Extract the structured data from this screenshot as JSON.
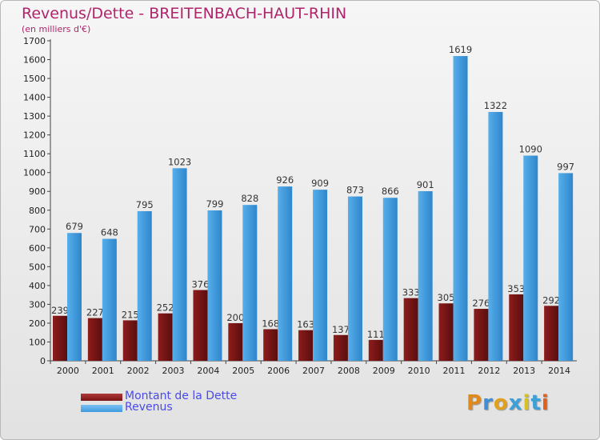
{
  "title": "Revenus/Dette - BREITENBACH-HAUT-RHIN",
  "subtitle": "(en milliers d'€)",
  "legend": {
    "debt": "Montant de la Dette",
    "revenue": "Revenus"
  },
  "colors": {
    "debt": "#7a1414",
    "revenue": "#3e9ae0"
  },
  "logo": "Proxiti",
  "chart_data": {
    "type": "bar",
    "title": "Revenus/Dette - BREITENBACH-HAUT-RHIN",
    "xlabel": "",
    "ylabel": "",
    "ylim": [
      0,
      1700
    ],
    "yticks": [
      0,
      100,
      200,
      300,
      400,
      500,
      600,
      700,
      800,
      900,
      1000,
      1100,
      1200,
      1300,
      1400,
      1500,
      1600,
      1700
    ],
    "grid": false,
    "legend_position": "bottom-left",
    "categories": [
      "2000",
      "2001",
      "2002",
      "2003",
      "2004",
      "2005",
      "2006",
      "2007",
      "2008",
      "2009",
      "2010",
      "2011",
      "2012",
      "2013",
      "2014"
    ],
    "series": [
      {
        "name": "Montant de la Dette",
        "values": [
          239,
          227,
          215,
          252,
          376,
          200,
          168,
          163,
          137,
          111,
          333,
          305,
          276,
          353,
          292
        ]
      },
      {
        "name": "Revenus",
        "values": [
          679,
          648,
          795,
          1023,
          799,
          828,
          926,
          909,
          873,
          866,
          901,
          1619,
          1322,
          1090,
          997
        ]
      }
    ]
  }
}
